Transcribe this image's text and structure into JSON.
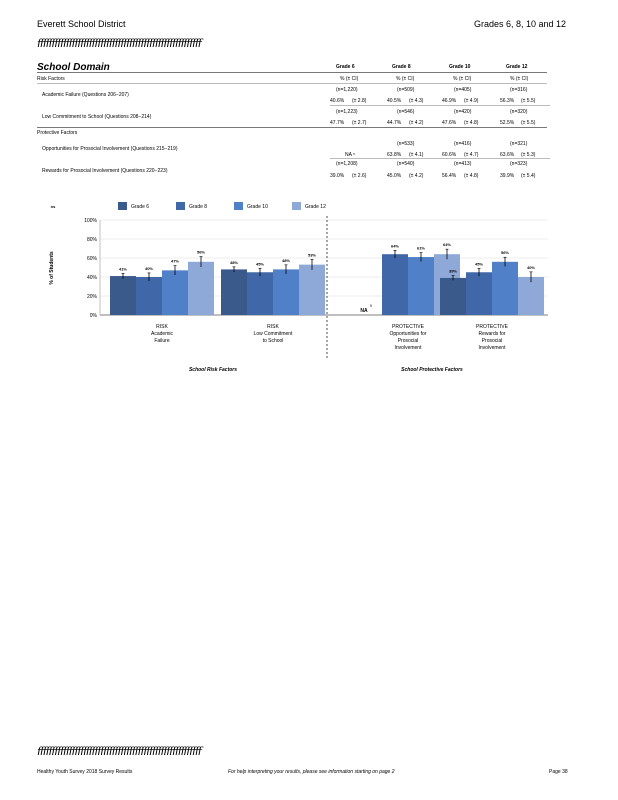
{
  "header": {
    "left": "Everett   School   District",
    "right": "Grades    6,  8,  10  and   12"
  },
  "rule_text": "ƒƒƒƒƒƒƒƒƒƒƒƒƒƒƒƒƒƒƒƒƒƒƒƒƒƒƒƒƒƒƒƒƒƒƒƒƒƒƒƒƒƒƒƒƒƒƒƒƒƒƒƒƒƒƒƒƒ",
  "section_title": "School   Domain",
  "table": {
    "grade_headers": [
      "Grade   6",
      "Grade   8",
      "Grade   10",
      "Grade   12"
    ],
    "sub_headers": [
      "%   (± CI)",
      "%   (± CI)",
      "%   (± CI)",
      "%   (± CI)"
    ],
    "group_risk": "Risk   Factors",
    "group_protective": "Protective   Factors",
    "rows": [
      {
        "label": "Academic     Failure     (Questions     206−207)",
        "n": [
          "(n=1,220)",
          "(n=509)",
          "(n=405)",
          "(n=316)"
        ],
        "pct": [
          "40.6%",
          "40.5%",
          "46.9%",
          "56.3%"
        ],
        "ci": [
          "(± 2.8)",
          "(± 4.3)",
          "(± 4.9)",
          "(± 5.5)"
        ]
      },
      {
        "label": "Low   Commitment      to  School     (Questions     208−214)",
        "n": [
          "(n=1,223)",
          "(n=546)",
          "(n=420)",
          "(n=320)"
        ],
        "pct": [
          "47.7%",
          "44.7%",
          "47.6%",
          "52.5%"
        ],
        "ci": [
          "(± 2.7)",
          "(± 4.2)",
          "(± 4.8)",
          "(± 5.5)"
        ]
      },
      {
        "label": "Opportunities      for   Prosocial     Involvement       (Questions     215−219)",
        "n": [
          "",
          "(n=533)",
          "(n=416)",
          "(n=321)"
        ],
        "pct": [
          "NA ⁵",
          "63.8%",
          "60.6%",
          "63.6%"
        ],
        "ci": [
          "",
          "(± 4.1)",
          "(± 4.7)",
          "(± 5.3)"
        ]
      },
      {
        "label": "Rewards    for  Prosocial     Involvement       (Questions     220−223)",
        "n": [
          "(n=1,208)",
          "(n=540)",
          "(n=413)",
          "(n=323)"
        ],
        "pct": [
          "39.0%",
          "45.0%",
          "56.4%",
          "39.9%"
        ],
        "ci": [
          "(± 2.6)",
          "(± 4.2)",
          "(± 4.8)",
          "(± 5.4)"
        ]
      }
    ]
  },
  "chart_data": {
    "type": "bar",
    "ylabel": "% of Students",
    "ylim": [
      0,
      100
    ],
    "yticks": [
      "0%",
      "20%",
      "40%",
      "60%",
      "80%",
      "100%"
    ],
    "legend_title": "ns",
    "series_names": [
      "Grade   6",
      "Grade   8",
      "Grade   10",
      "Grade   12"
    ],
    "colors": [
      "#3a5a8c",
      "#4068a8",
      "#4f80c8",
      "#8ea8d8"
    ],
    "categories": [
      {
        "lines": [
          "RISK",
          "Academic",
          "Failure"
        ],
        "values": [
          41,
          40,
          47,
          56
        ],
        "labels": [
          "41%",
          "40%",
          "47%",
          "56%"
        ],
        "ci": [
          2.8,
          4.3,
          4.9,
          5.5
        ]
      },
      {
        "lines": [
          "RISK",
          "Low  Commitment",
          "to School"
        ],
        "values": [
          48,
          45,
          48,
          53
        ],
        "labels": [
          "48%",
          "45%",
          "48%",
          "53%"
        ],
        "ci": [
          2.7,
          4.2,
          4.8,
          5.5
        ]
      },
      {
        "lines": [
          "PROTECTIVE",
          "Opportunities      for",
          "Prosocial",
          "Involvement"
        ],
        "values": [
          null,
          64,
          61,
          64
        ],
        "labels": [
          "NA",
          "64%",
          "61%",
          "64%"
        ],
        "ci": [
          0,
          4.1,
          4.7,
          5.3
        ]
      },
      {
        "lines": [
          "PROTECTIVE",
          "Rewards     for",
          "Prosocial",
          "Involvement"
        ],
        "values": [
          39,
          45,
          56,
          40
        ],
        "labels": [
          "39%",
          "45%",
          "56%",
          "40%"
        ],
        "ci": [
          2.6,
          4.2,
          4.8,
          5.4
        ]
      }
    ],
    "na_superscript": "5",
    "group_labels": [
      "School    Risk    Factors",
      "School    Protective     Factors"
    ]
  },
  "footer": {
    "left": "Healthy    Youth   Survey    2018   Survey    Results",
    "middle": "For   help   interpreting    your   results,   please   see   information    starting   on page  2",
    "right": "Page    38"
  }
}
